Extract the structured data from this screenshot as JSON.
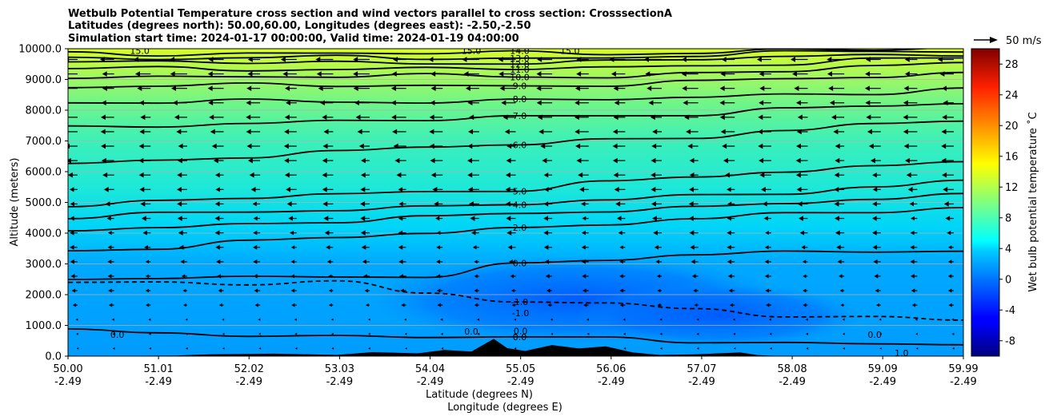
{
  "chart_data": {
    "type": "contour",
    "title_lines": [
      "Wetbulb Potential Temperature cross section and wind vectors parallel to cross section: CrosssectionA",
      "Latitudes (degrees north): 50.00,60.00, Longitudes (degrees east): -2.50,-2.50",
      "Simulation start time: 2024-01-17 00:00:00, Valid time: 2024-01-19 04:00:00"
    ],
    "xlabel": "Latitude (degrees N)",
    "xlabel2": "Longitude (degrees E)",
    "ylabel": "Altitude (meters)",
    "xlim": [
      50.0,
      59.99
    ],
    "ylim": [
      0,
      10000
    ],
    "x_ticks": [
      {
        "lat": "50.00",
        "lon": "-2.49"
      },
      {
        "lat": "51.01",
        "lon": "-2.49"
      },
      {
        "lat": "52.02",
        "lon": "-2.49"
      },
      {
        "lat": "53.03",
        "lon": "-2.49"
      },
      {
        "lat": "54.04",
        "lon": "-2.49"
      },
      {
        "lat": "55.05",
        "lon": "-2.49"
      },
      {
        "lat": "56.06",
        "lon": "-2.49"
      },
      {
        "lat": "57.07",
        "lon": "-2.49"
      },
      {
        "lat": "58.08",
        "lon": "-2.49"
      },
      {
        "lat": "59.09",
        "lon": "-2.49"
      },
      {
        "lat": "59.99",
        "lon": "-2.49"
      }
    ],
    "y_ticks": [
      "0.0",
      "1000.0",
      "2000.0",
      "3000.0",
      "4000.0",
      "5000.0",
      "6000.0",
      "7000.0",
      "8000.0",
      "9000.0",
      "10000.0"
    ],
    "grid": "horizontal",
    "colorbar": {
      "label": "Wet bulb potential temperature $^\\circ$C",
      "label_text": "Wet bulb potential temperature ˚C",
      "range": [
        -10,
        30
      ],
      "ticks": [
        "-8",
        "-4",
        "0",
        "4",
        "8",
        "12",
        "16",
        "20",
        "24",
        "28"
      ],
      "colormap": "jet"
    },
    "wind_key": "50 m/s",
    "contour_lines": [
      {
        "value": -1.0,
        "label": "-1.0",
        "style": "dashed",
        "heights": [
          2400,
          2400,
          2400,
          2400,
          2000,
          1800,
          1700,
          1600,
          1300,
          1200,
          1200
        ]
      },
      {
        "value": 0.0,
        "label": "0.0",
        "style": "solid",
        "heights": [
          800,
          750,
          700,
          650,
          650,
          600,
          550,
          500,
          450,
          400,
          400
        ]
      },
      {
        "value": 0.0,
        "label": "0.0",
        "style": "solid",
        "heights": [
          2450,
          2550,
          2550,
          2550,
          2650,
          3000,
          3100,
          3300,
          3350,
          3450,
          3450
        ]
      },
      {
        "value": 2.0,
        "label": "2.0",
        "style": "solid",
        "heights": [
          3450,
          3550,
          3700,
          3850,
          4000,
          4150,
          4350,
          4450,
          4600,
          4700,
          4800
        ]
      },
      {
        "value": 3.0,
        "label": "",
        "style": "solid",
        "heights": [
          4100,
          4200,
          4300,
          4400,
          4500,
          4600,
          4750,
          4850,
          5000,
          5100,
          5200
        ]
      },
      {
        "value": 4.0,
        "label": "4.0",
        "style": "solid",
        "heights": [
          4500,
          4600,
          4700,
          4800,
          4850,
          4950,
          5050,
          5200,
          5350,
          5500,
          5700
        ]
      },
      {
        "value": 5.0,
        "label": "5.0",
        "style": "solid",
        "heights": [
          4900,
          5000,
          5150,
          5250,
          5350,
          5450,
          5650,
          5800,
          6000,
          6150,
          6400
        ]
      },
      {
        "value": 6.0,
        "label": "6.0",
        "style": "solid",
        "heights": [
          6250,
          6400,
          6500,
          6600,
          6800,
          6900,
          7050,
          7150,
          7300,
          7500,
          7700
        ]
      },
      {
        "value": 7.0,
        "label": "7.0",
        "style": "solid",
        "heights": [
          7400,
          7500,
          7600,
          7650,
          7700,
          7750,
          7800,
          7900,
          8050,
          8150,
          8200
        ]
      },
      {
        "value": 8.0,
        "label": "8.0",
        "style": "solid",
        "heights": [
          8200,
          8250,
          8300,
          8300,
          8300,
          8300,
          8350,
          8400,
          8500,
          8600,
          8700
        ]
      },
      {
        "value": 9.0,
        "label": "9.0",
        "style": "solid",
        "heights": [
          8800,
          8800,
          8800,
          8800,
          8800,
          8800,
          8850,
          8900,
          9000,
          9100,
          9200
        ]
      },
      {
        "value": 10.0,
        "label": "10.0",
        "style": "solid",
        "heights": [
          9100,
          9100,
          9100,
          9100,
          9100,
          9100,
          9100,
          9200,
          9300,
          9400,
          9500
        ]
      },
      {
        "value": 11.0,
        "label": "11.0",
        "style": "solid",
        "heights": [
          9350,
          9350,
          9350,
          9350,
          9350,
          9350,
          9350,
          9450,
          9550,
          9650,
          9700
        ]
      },
      {
        "value": 12.0,
        "label": "12.0",
        "style": "solid",
        "heights": [
          9550,
          9550,
          9550,
          9550,
          9550,
          9550,
          9550,
          9650,
          9750,
          9800,
          9850
        ]
      },
      {
        "value": 13.0,
        "label": "13.0",
        "style": "solid",
        "heights": [
          9700,
          9700,
          9700,
          9700,
          9700,
          9700,
          9700,
          9800,
          9850,
          9900,
          9950
        ]
      },
      {
        "value": 14.0,
        "label": "14.0",
        "style": "solid",
        "heights": [
          9850,
          9850,
          9850,
          9850,
          9850,
          9850,
          9850,
          9900,
          9950,
          9980,
          9990
        ]
      }
    ],
    "misc_contour_labels": [
      {
        "label": "15.0",
        "lat": 50.8,
        "alt": 9930
      },
      {
        "label": "15.0",
        "lat": 54.5,
        "alt": 9930
      },
      {
        "label": "15.0",
        "lat": 55.6,
        "alt": 9930
      },
      {
        "label": "0.0",
        "lat": 50.55,
        "alt": 700
      },
      {
        "label": "0.0",
        "lat": 54.5,
        "alt": 800
      },
      {
        "label": "0.0",
        "lat": 55.05,
        "alt": 820
      },
      {
        "label": "-1.0",
        "lat": 55.05,
        "alt": 1400
      },
      {
        "label": "0.0",
        "lat": 59.0,
        "alt": 700
      },
      {
        "label": "1.0",
        "lat": 59.3,
        "alt": 100
      }
    ]
  }
}
